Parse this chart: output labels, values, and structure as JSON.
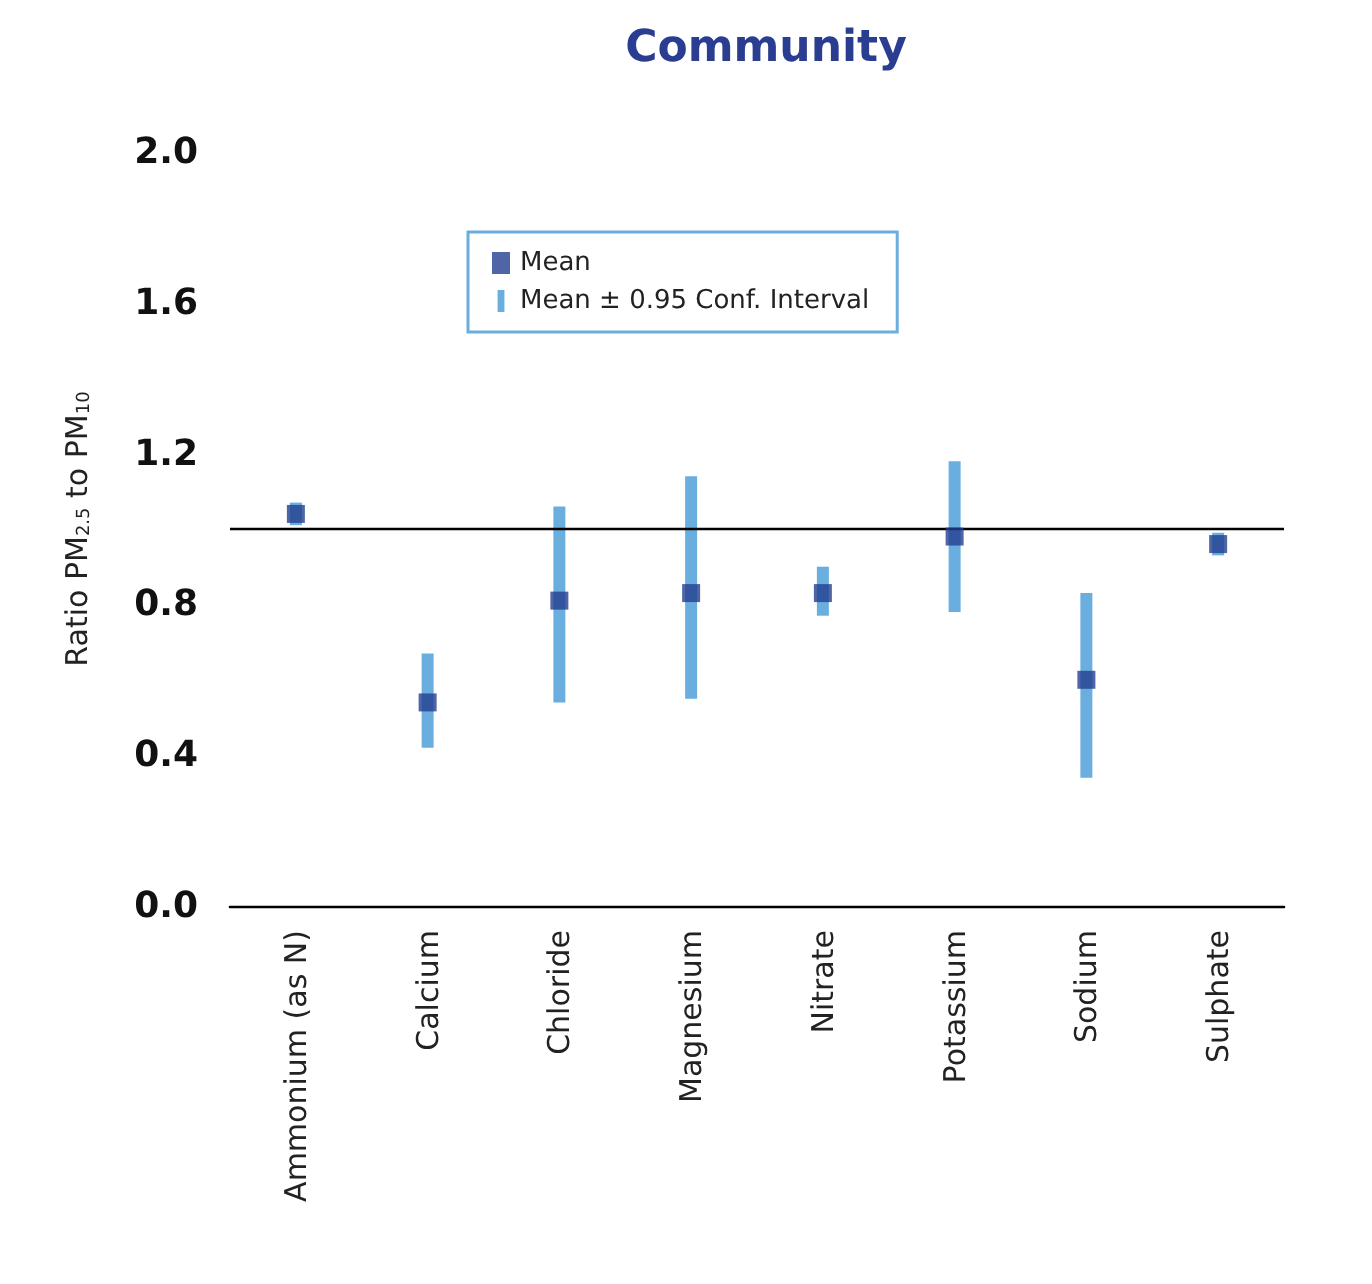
{
  "chart_data": {
    "type": "scatter",
    "title": "Community",
    "ylabel": "Ratio PM$_{2.5}$ to PM$_{10}$",
    "categories": [
      "Ammonium (as N)",
      "Calcium",
      "Chloride",
      "Magnesium",
      "Nitrate",
      "Potassium",
      "Sodium",
      "Sulphate"
    ],
    "series": [
      {
        "name": "Mean",
        "color": "#233f8e",
        "values": [
          1.04,
          0.54,
          0.81,
          0.83,
          0.83,
          0.98,
          0.6,
          0.96
        ]
      },
      {
        "name": "Mean ± 0.95 Conf. Interval",
        "type": "bar",
        "color": "#6aaee0",
        "base": [
          1.01,
          0.42,
          0.54,
          0.55,
          0.77,
          0.78,
          0.34,
          0.93
        ],
        "values": [
          0.06,
          0.25,
          0.52,
          0.59,
          0.13,
          0.4,
          0.49,
          0.06
        ]
      }
    ],
    "ylim": [
      0,
      2
    ],
    "yticks": [
      {
        "value": 0,
        "label": "0.0"
      },
      {
        "value": 0.4,
        "label": "0.4"
      },
      {
        "value": 0.8,
        "label": "0.8"
      },
      {
        "value": 1.2,
        "label": "1.2"
      },
      {
        "value": 1.6,
        "label": "1.6"
      },
      {
        "value": 2,
        "label": "2.0"
      }
    ],
    "ref_lines": [
      {
        "axis": "y",
        "value": 1,
        "color": "#000000"
      }
    ],
    "marker": "square",
    "legend": "top",
    "grid": false
  }
}
